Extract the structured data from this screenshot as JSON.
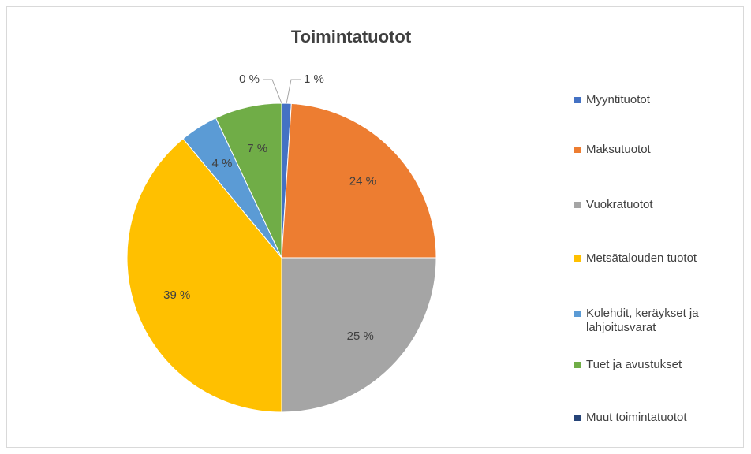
{
  "chart_data": {
    "type": "pie",
    "title": "Toimintatuotot",
    "categories": [
      "Myyntituotot",
      "Maksutuotot",
      "Vuokratuotot",
      "Metsätalouden tuotot",
      "Kolehdit, keräykset ja lahjoitusvarat",
      "Tuet ja avustukset",
      "Muut toimintatuotot"
    ],
    "values": [
      1,
      24,
      25,
      39,
      4,
      7,
      0
    ],
    "value_labels": [
      "1 %",
      "24 %",
      "25 %",
      "39 %",
      "4 %",
      "7 %",
      "0 %"
    ],
    "colors": [
      "#4472c4",
      "#ed7d31",
      "#a5a5a5",
      "#ffc000",
      "#5b9bd5",
      "#70ad47",
      "#264478"
    ],
    "legend": "right"
  }
}
